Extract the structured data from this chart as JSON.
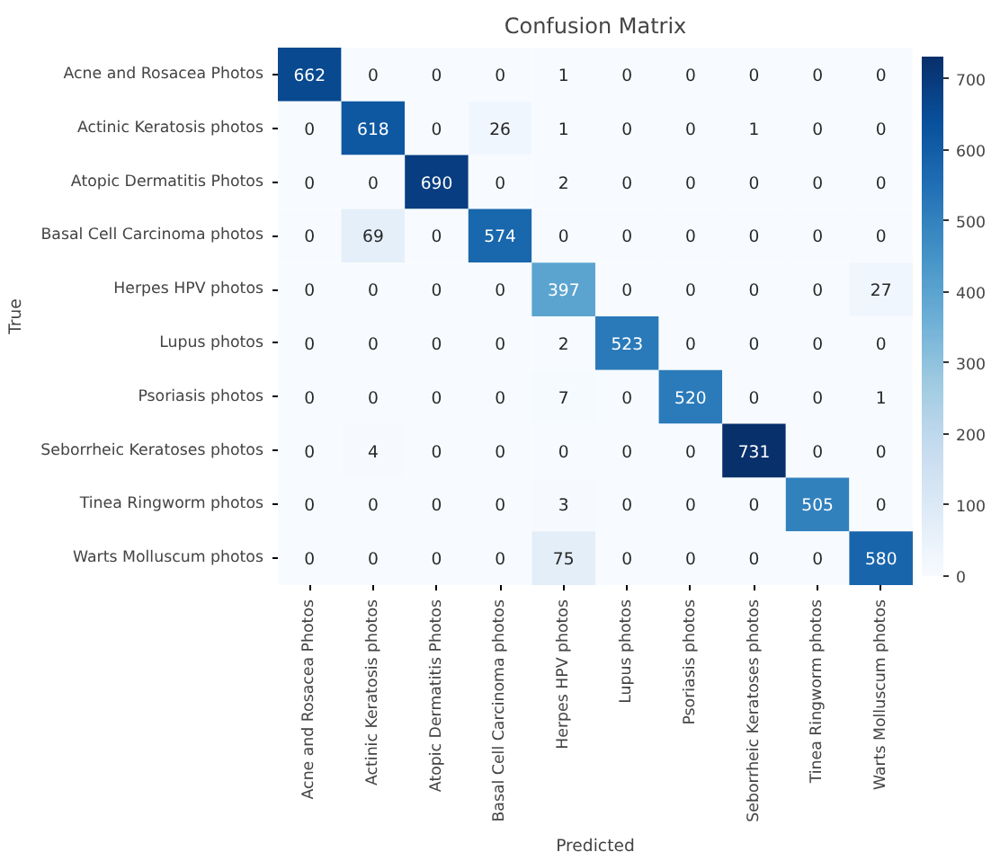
{
  "chart_data": {
    "type": "heatmap",
    "title": "Confusion Matrix",
    "xlabel": "Predicted",
    "ylabel": "True",
    "categories": [
      "Acne and Rosacea Photos",
      "Actinic Keratosis photos",
      "Atopic Dermatitis Photos",
      "Basal Cell Carcinoma photos",
      "Herpes HPV photos",
      "Lupus photos",
      "Psoriasis photos",
      "Seborrheic Keratoses photos",
      "Tinea Ringworm photos",
      "Warts Molluscum photos"
    ],
    "y_categories": [
      "Acne and Rosacea Photos",
      "Actinic Keratosis photos",
      "Atopic Dermatitis Photos",
      "Basal Cell Carcinoma photos",
      "Herpes HPV photos",
      "Lupus photos",
      "Psoriasis photos",
      "Seborrheic Keratoses photos",
      "Tinea Ringworm photos",
      "Warts Molluscum photos"
    ],
    "cells": [
      [
        662,
        0,
        0,
        0,
        1,
        0,
        0,
        0,
        0,
        0
      ],
      [
        0,
        618,
        0,
        26,
        1,
        0,
        0,
        1,
        0,
        0
      ],
      [
        0,
        0,
        690,
        0,
        2,
        0,
        0,
        0,
        0,
        0
      ],
      [
        0,
        69,
        0,
        574,
        0,
        0,
        0,
        0,
        0,
        0
      ],
      [
        0,
        0,
        0,
        0,
        397,
        0,
        0,
        0,
        0,
        27
      ],
      [
        0,
        0,
        0,
        0,
        2,
        523,
        0,
        0,
        0,
        0
      ],
      [
        0,
        0,
        0,
        0,
        7,
        0,
        520,
        0,
        0,
        1
      ],
      [
        0,
        4,
        0,
        0,
        0,
        0,
        0,
        731,
        0,
        0
      ],
      [
        0,
        0,
        0,
        0,
        3,
        0,
        0,
        0,
        505,
        0
      ],
      [
        0,
        0,
        0,
        0,
        75,
        0,
        0,
        0,
        0,
        580
      ]
    ],
    "clim": [
      0,
      731
    ],
    "cticks": [
      0,
      100,
      200,
      300,
      400,
      500,
      600,
      700
    ],
    "data_labels": true
  }
}
